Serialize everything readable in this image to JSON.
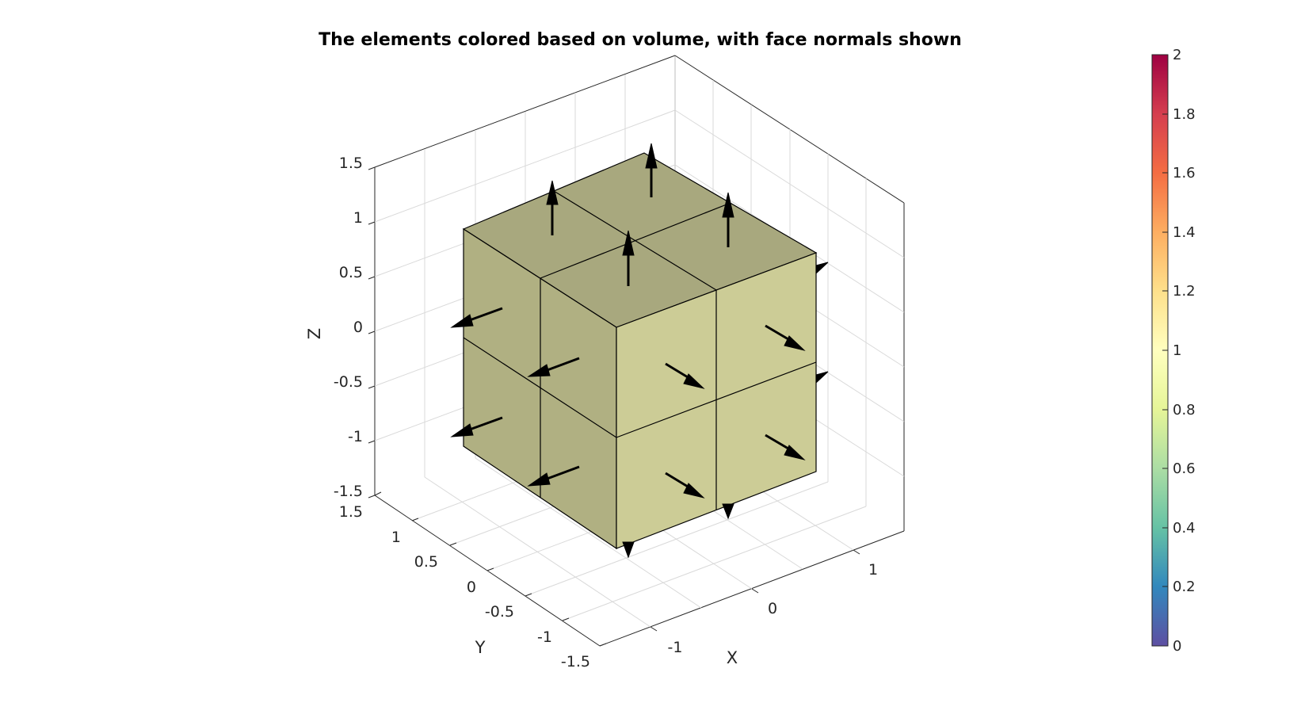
{
  "figure": {
    "title": "The elements colored based on volume, with face normals shown"
  },
  "axes": {
    "xlabel": "X",
    "ylabel": "Y",
    "zlabel": "Z",
    "x_ticks": [
      "-1",
      "0",
      "1"
    ],
    "y_ticks": [
      "-1.5",
      "-1",
      "-0.5",
      "0",
      "0.5",
      "1",
      "1.5"
    ],
    "z_ticks": [
      "-1.5",
      "-1",
      "-0.5",
      "0",
      "0.5",
      "1",
      "1.5"
    ],
    "grid": true,
    "box": true
  },
  "colorbar": {
    "ticks": [
      "0",
      "0.2",
      "0.4",
      "0.6",
      "0.8",
      "1",
      "1.2",
      "1.4",
      "1.6",
      "1.8",
      "2"
    ],
    "colormap": "spectral",
    "range": [
      0,
      2
    ]
  },
  "scene": {
    "elements": 8,
    "element_volume": 1,
    "face_colors": {
      "top": "#a8a87e",
      "left": "#b0b082",
      "front": "#cccc96"
    },
    "edge_color": "#000000",
    "arrow_color": "#000000"
  }
}
